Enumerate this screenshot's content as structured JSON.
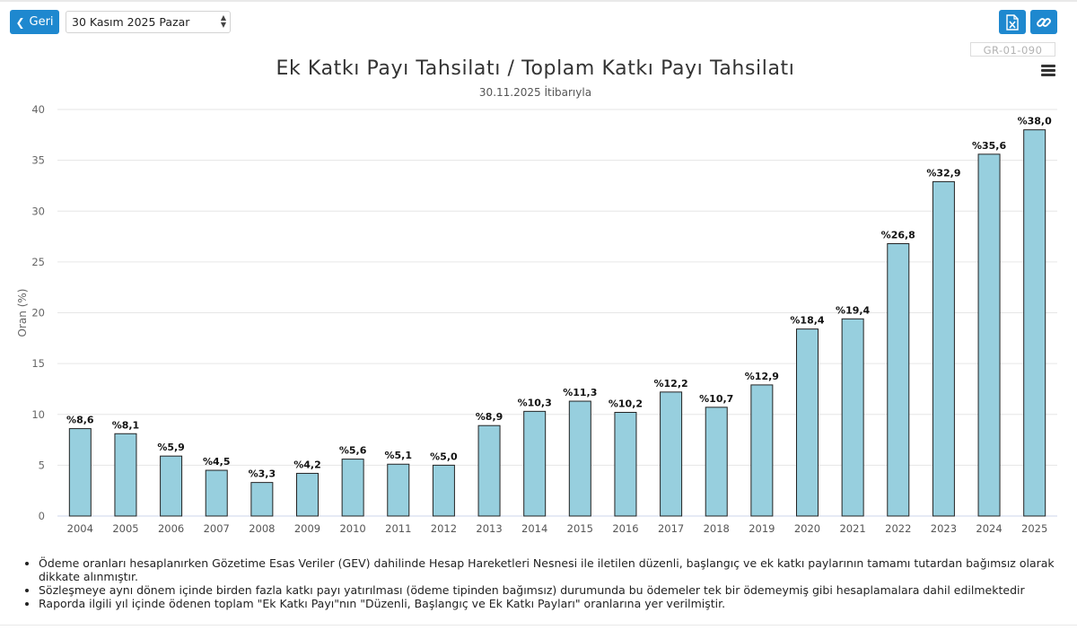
{
  "toolbar": {
    "back_label": "Geri",
    "date_value": "30 Kasım 2025 Pazar",
    "report_code": "GR-01-090",
    "excel_icon": "excel-export-icon",
    "link_icon": "link-icon",
    "menu_icon": "hamburger-menu-icon"
  },
  "colors": {
    "bar": "#97cfde",
    "accent": "#1e88cf",
    "grid": "#e6e6e6"
  },
  "chart_data": {
    "type": "bar",
    "title": "Ek Katkı Payı Tahsilatı / Toplam Katkı Payı Tahsilatı",
    "subtitle": "30.11.2025 İtibarıyla",
    "xlabel": "",
    "ylabel": "Oran (%)",
    "ylim": [
      0,
      40
    ],
    "yticks": [
      0,
      5,
      10,
      15,
      20,
      25,
      30,
      35,
      40
    ],
    "grid": true,
    "categories": [
      "2004",
      "2005",
      "2006",
      "2007",
      "2008",
      "2009",
      "2010",
      "2011",
      "2012",
      "2013",
      "2014",
      "2015",
      "2016",
      "2017",
      "2018",
      "2019",
      "2020",
      "2021",
      "2022",
      "2023",
      "2024",
      "2025"
    ],
    "values": [
      8.6,
      8.1,
      5.9,
      4.5,
      3.3,
      4.2,
      5.6,
      5.1,
      5.0,
      8.9,
      10.3,
      11.3,
      10.2,
      12.2,
      10.7,
      12.9,
      18.4,
      19.4,
      26.8,
      32.9,
      35.6,
      38.0
    ],
    "data_labels": [
      "%8,6",
      "%8,1",
      "%5,9",
      "%4,5",
      "%3,3",
      "%4,2",
      "%5,6",
      "%5,1",
      "%5,0",
      "%8,9",
      "%10,3",
      "%11,3",
      "%10,2",
      "%12,2",
      "%10,7",
      "%12,9",
      "%18,4",
      "%19,4",
      "%26,8",
      "%32,9",
      "%35,6",
      "%38,0"
    ]
  },
  "notes": [
    "Ödeme oranları hesaplanırken Gözetime Esas Veriler (GEV) dahilinde Hesap Hareketleri Nesnesi ile iletilen düzenli, başlangıç ve ek katkı paylarının tamamı tutardan bağımsız olarak dikkate alınmıştır.",
    "Sözleşmeye aynı dönem içinde birden fazla katkı payı yatırılması (ödeme tipinden bağımsız) durumunda bu ödemeler tek bir ödemeymiş gibi hesaplamalara dahil edilmektedir",
    "Raporda ilgili yıl içinde ödenen toplam \"Ek Katkı Payı\"nın \"Düzenli, Başlangıç ve Ek Katkı Payları\" oranlarına yer verilmiştir."
  ]
}
